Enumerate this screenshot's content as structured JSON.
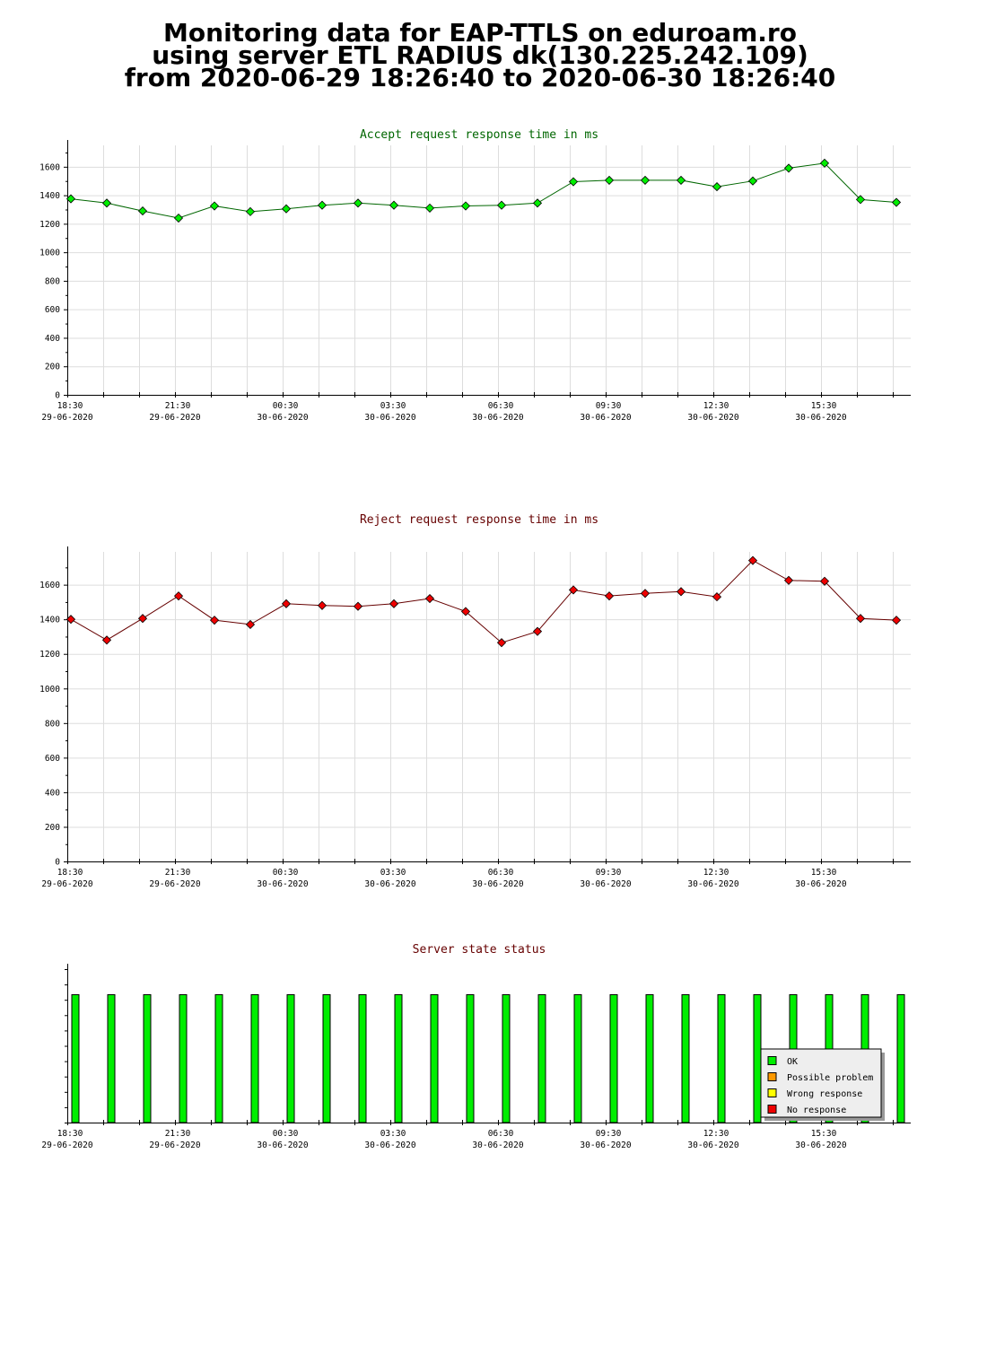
{
  "page": {
    "title_lines": [
      "Monitoring data for EAP-TTLS on eduroam.ro",
      "using server ETL RADIUS dk(130.225.242.109)",
      "from 2020-06-29 18:26:40 to 2020-06-30 18:26:40"
    ]
  },
  "x_ticks": [
    {
      "x": 0,
      "time": "18:30",
      "date": "29-06-2020"
    },
    {
      "x": 3,
      "time": "21:30",
      "date": "29-06-2020"
    },
    {
      "x": 6,
      "time": "00:30",
      "date": "30-06-2020"
    },
    {
      "x": 9,
      "time": "03:30",
      "date": "30-06-2020"
    },
    {
      "x": 12,
      "time": "06:30",
      "date": "30-06-2020"
    },
    {
      "x": 15,
      "time": "09:30",
      "date": "30-06-2020"
    },
    {
      "x": 18,
      "time": "12:30",
      "date": "30-06-2020"
    },
    {
      "x": 21,
      "time": "15:30",
      "date": "30-06-2020"
    }
  ],
  "chart_data": [
    {
      "type": "line",
      "title": "Accept request response time in ms",
      "title_color": "#006600",
      "marker_color": "#00ee00",
      "line_color": "#006600",
      "xlim": [
        0,
        23.5
      ],
      "ylim": [
        0,
        1750
      ],
      "yticks": [
        0,
        200,
        400,
        600,
        800,
        1000,
        1200,
        1400,
        1600
      ],
      "grid": true,
      "values": [
        1375,
        1345,
        1290,
        1240,
        1325,
        1285,
        1305,
        1330,
        1345,
        1330,
        1310,
        1325,
        1330,
        1345,
        1495,
        1505,
        1505,
        1505,
        1460,
        1500,
        1590,
        1625,
        1370,
        1350
      ]
    },
    {
      "type": "line",
      "title": "Reject request response time in ms",
      "title_color": "#660000",
      "marker_color": "#ee0000",
      "line_color": "#660000",
      "xlim": [
        0,
        23.5
      ],
      "ylim": [
        0,
        1790
      ],
      "yticks": [
        0,
        200,
        400,
        600,
        800,
        1000,
        1200,
        1400,
        1600
      ],
      "grid": true,
      "values": [
        1400,
        1280,
        1405,
        1535,
        1395,
        1370,
        1490,
        1480,
        1475,
        1490,
        1520,
        1445,
        1265,
        1330,
        1570,
        1535,
        1550,
        1560,
        1530,
        1740,
        1625,
        1620,
        1405,
        1395
      ]
    },
    {
      "type": "bar",
      "title": "Server state status",
      "title_color": "#660000",
      "xlim": [
        0,
        23.5
      ],
      "ylim": [
        0,
        1.2
      ],
      "grid": false,
      "values": [
        1,
        1,
        1,
        1,
        1,
        1,
        1,
        1,
        1,
        1,
        1,
        1,
        1,
        1,
        1,
        1,
        1,
        1,
        1,
        1,
        1,
        1,
        1,
        1
      ],
      "series_color": "#00ee00",
      "legend": {
        "placement": "bottom-right",
        "items": [
          {
            "label": "OK",
            "color": "#00ee00"
          },
          {
            "label": "Possible problem",
            "color": "#ff9900"
          },
          {
            "label": "Wrong response",
            "color": "#ffff00"
          },
          {
            "label": "No response",
            "color": "#ee0000"
          }
        ]
      }
    }
  ]
}
